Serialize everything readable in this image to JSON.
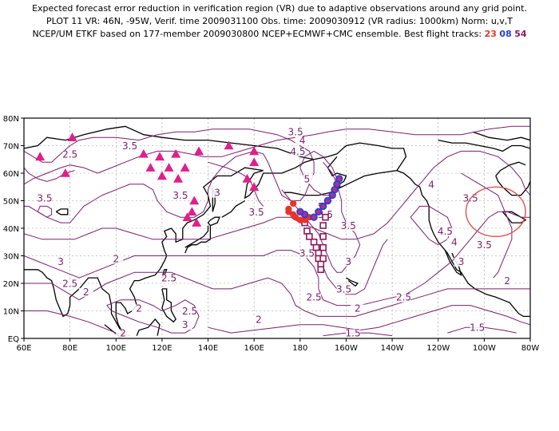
{
  "title": {
    "line1": "Expected forecast error reduction in verification region (VR) due to adaptive observations around any grid point.",
    "line2": "PLOT 11 VR: 46N, -95W, Verif. time 2009031100 Obs. time: 2009030912 (VR radius: 1000km) Norm: u,v,T",
    "line3_prefix": "NCEP/UM ETKF based on 177-member 2009030800 NCEP+ECMWF+CMC ensemble. Best flight tracks:",
    "track_labels": [
      "23",
      "08",
      "54"
    ]
  },
  "colors": {
    "contour": "#7a1f6e",
    "track_red": "#e8332b",
    "track_blue": "#2a3fd8",
    "track_purple": "#8b1a5c",
    "triangle": "#e0208a",
    "verif_circle": "#e05050",
    "coast": "#000000",
    "grid": "#999999"
  },
  "axes": {
    "x_ticks": [
      "80E",
      "100E",
      "120E",
      "140E",
      "160E",
      "180",
      "160W",
      "140W",
      "120W",
      "100W",
      "80W"
    ],
    "x_tick_values": [
      80,
      100,
      120,
      140,
      160,
      180,
      200,
      220,
      240,
      260,
      280
    ],
    "y_ticks": [
      "EQ",
      "10N",
      "20N",
      "30N",
      "40N",
      "50N",
      "60N",
      "70N",
      "80N"
    ],
    "y_tick_values": [
      0,
      10,
      20,
      30,
      40,
      50,
      60,
      70,
      80
    ],
    "x_edge_labels": [
      "60E",
      "80W"
    ],
    "lon_range": [
      60,
      280
    ],
    "lat_range": [
      0,
      80
    ]
  },
  "contour_labels": [
    {
      "text": "3.5",
      "lon": 178,
      "lat": 74
    },
    {
      "text": "4",
      "lon": 181,
      "lat": 71
    },
    {
      "text": "4.5",
      "lon": 179,
      "lat": 67
    },
    {
      "text": "5",
      "lon": 183,
      "lat": 57
    },
    {
      "text": "3.5",
      "lon": 106,
      "lat": 69
    },
    {
      "text": "2.5",
      "lon": 80,
      "lat": 66
    },
    {
      "text": "3",
      "lon": 144,
      "lat": 52
    },
    {
      "text": "3.5",
      "lon": 128,
      "lat": 51
    },
    {
      "text": "3.5",
      "lon": 69,
      "lat": 50
    },
    {
      "text": "3.5",
      "lon": 161,
      "lat": 45
    },
    {
      "text": "5",
      "lon": 189,
      "lat": 47
    },
    {
      "text": "3.5",
      "lon": 191,
      "lat": 44
    },
    {
      "text": "3.5",
      "lon": 201,
      "lat": 40
    },
    {
      "text": "3.5",
      "lon": 183,
      "lat": 30
    },
    {
      "text": "3",
      "lon": 201,
      "lat": 27
    },
    {
      "text": "3.5",
      "lon": 199,
      "lat": 17
    },
    {
      "text": "4",
      "lon": 237,
      "lat": 55
    },
    {
      "text": "3.5",
      "lon": 254,
      "lat": 50
    },
    {
      "text": "4.5",
      "lon": 243,
      "lat": 38
    },
    {
      "text": "4",
      "lon": 247,
      "lat": 34
    },
    {
      "text": "3.5",
      "lon": 260,
      "lat": 33
    },
    {
      "text": "3",
      "lon": 250,
      "lat": 27
    },
    {
      "text": "2",
      "lon": 270,
      "lat": 20
    },
    {
      "text": "3",
      "lon": 76,
      "lat": 27
    },
    {
      "text": "2",
      "lon": 100,
      "lat": 28
    },
    {
      "text": "2.5",
      "lon": 80,
      "lat": 19
    },
    {
      "text": "2",
      "lon": 87,
      "lat": 16
    },
    {
      "text": "2",
      "lon": 110,
      "lat": 10
    },
    {
      "text": "2.5",
      "lon": 123,
      "lat": 21
    },
    {
      "text": "2.5",
      "lon": 132,
      "lat": 9
    },
    {
      "text": "3",
      "lon": 130,
      "lat": 4
    },
    {
      "text": "2",
      "lon": 103,
      "lat": 1
    },
    {
      "text": "2",
      "lon": 162,
      "lat": 6
    },
    {
      "text": "2.5",
      "lon": 186,
      "lat": 14
    },
    {
      "text": "2",
      "lon": 205,
      "lat": 10
    },
    {
      "text": "2.5",
      "lon": 225,
      "lat": 14
    },
    {
      "text": "1.5",
      "lon": 203,
      "lat": 1
    },
    {
      "text": "1.5",
      "lon": 257,
      "lat": 3
    }
  ],
  "triangles": [
    {
      "lon": 67,
      "lat": 66
    },
    {
      "lon": 81,
      "lat": 73
    },
    {
      "lon": 78,
      "lat": 60
    },
    {
      "lon": 112,
      "lat": 67
    },
    {
      "lon": 119,
      "lat": 66
    },
    {
      "lon": 126,
      "lat": 67
    },
    {
      "lon": 136,
      "lat": 68
    },
    {
      "lon": 115,
      "lat": 62
    },
    {
      "lon": 123,
      "lat": 62
    },
    {
      "lon": 130,
      "lat": 62
    },
    {
      "lon": 120,
      "lat": 59
    },
    {
      "lon": 127,
      "lat": 58
    },
    {
      "lon": 149,
      "lat": 70
    },
    {
      "lon": 160,
      "lat": 68
    },
    {
      "lon": 160,
      "lat": 64
    },
    {
      "lon": 157,
      "lat": 58
    },
    {
      "lon": 160,
      "lat": 55
    },
    {
      "lon": 134,
      "lat": 50
    },
    {
      "lon": 133,
      "lat": 46
    },
    {
      "lon": 135,
      "lat": 42
    },
    {
      "lon": 131,
      "lat": 44
    }
  ],
  "tracks": [
    {
      "label": "23",
      "points": [
        [
          177,
          49
        ],
        [
          175,
          47
        ],
        [
          175,
          46
        ],
        [
          177,
          45
        ],
        [
          178,
          44
        ],
        [
          180,
          43
        ],
        [
          182,
          43
        ],
        [
          184,
          44
        ],
        [
          186,
          44
        ]
      ]
    },
    {
      "label": "08",
      "points": [
        [
          197,
          58
        ],
        [
          196,
          56
        ],
        [
          195,
          54
        ],
        [
          194,
          52
        ],
        [
          192,
          50
        ],
        [
          190,
          48
        ],
        [
          188,
          46
        ],
        [
          186,
          44
        ],
        [
          182,
          45
        ],
        [
          180,
          46
        ]
      ]
    },
    {
      "label": "54",
      "points": [
        [
          182,
          42
        ],
        [
          183,
          39
        ],
        [
          184,
          37
        ],
        [
          186,
          35
        ],
        [
          187,
          33
        ],
        [
          188,
          31
        ],
        [
          188,
          29
        ],
        [
          189,
          27
        ],
        [
          189,
          25
        ],
        [
          190,
          29
        ],
        [
          190,
          33
        ],
        [
          190,
          37
        ],
        [
          190,
          41
        ],
        [
          191,
          44
        ]
      ]
    }
  ],
  "verif_region": {
    "lat": 46,
    "lon": 265,
    "radius_km": 1000
  }
}
